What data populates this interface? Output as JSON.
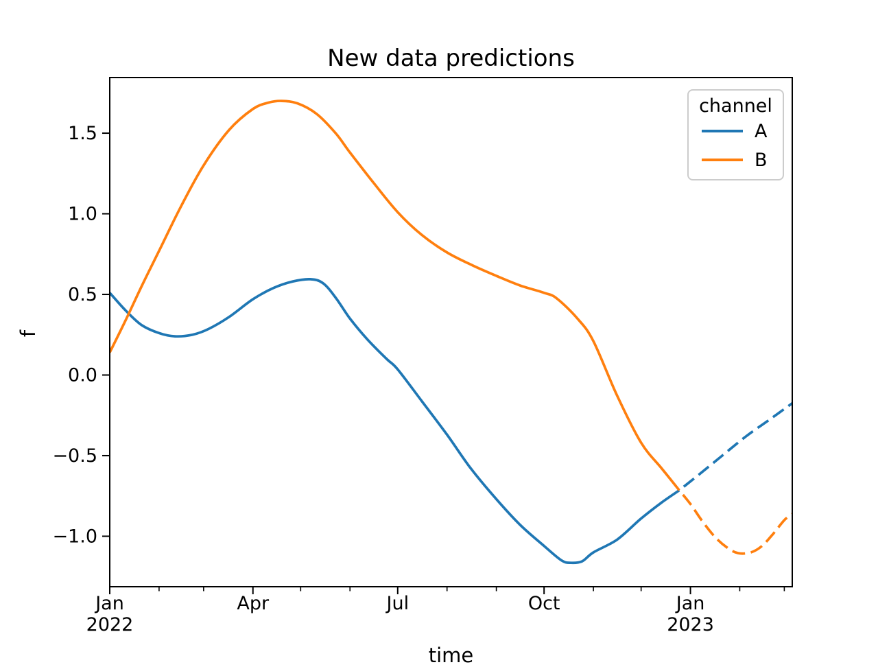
{
  "title": "New data predictions",
  "xlabel": "time",
  "ylabel": "f",
  "legend": {
    "title": "channel",
    "entries": [
      {
        "label": "A",
        "color": "#1f77b4"
      },
      {
        "label": "B",
        "color": "#ff7f0e"
      }
    ]
  },
  "colors": {
    "channel_a": "#1f77b4",
    "channel_b": "#ff7f0e",
    "axis": "#000000",
    "legend_border": "#cccccc"
  },
  "chart_data": {
    "type": "line",
    "title": "New data predictions",
    "xlabel": "time",
    "ylabel": "f",
    "legend_title": "channel",
    "legend_position": "upper right",
    "grid": false,
    "x_unit": "days since 2022-01-01",
    "xlim": [
      0,
      429
    ],
    "ylim": [
      -1.313,
      1.845
    ],
    "x_major_ticks": [
      {
        "day": 0,
        "line1": "Jan",
        "line2": "2022"
      },
      {
        "day": 90,
        "line1": "Apr",
        "line2": ""
      },
      {
        "day": 181,
        "line1": "Jul",
        "line2": ""
      },
      {
        "day": 273,
        "line1": "Oct",
        "line2": ""
      },
      {
        "day": 365,
        "line1": "Jan",
        "line2": "2023"
      }
    ],
    "x_minor_tick_days": [
      31,
      59,
      120,
      151,
      212,
      243,
      304,
      334,
      396,
      424
    ],
    "y_ticks": [
      {
        "value": 1.5,
        "label": "1.5"
      },
      {
        "value": 1.0,
        "label": "1.0"
      },
      {
        "value": 0.5,
        "label": "0.5"
      },
      {
        "value": 0.0,
        "label": "0.0"
      },
      {
        "value": -0.5,
        "label": "−0.5"
      },
      {
        "value": -1.0,
        "label": "−1.0"
      }
    ],
    "series": [
      {
        "name": "A",
        "role": "observed",
        "color": "#1f77b4",
        "linestyle": "solid",
        "points": [
          [
            0,
            0.51
          ],
          [
            10,
            0.4
          ],
          [
            20,
            0.31
          ],
          [
            31,
            0.26
          ],
          [
            41,
            0.24
          ],
          [
            52,
            0.25
          ],
          [
            62,
            0.285
          ],
          [
            75,
            0.36
          ],
          [
            90,
            0.47
          ],
          [
            103,
            0.54
          ],
          [
            115,
            0.58
          ],
          [
            126,
            0.594
          ],
          [
            134,
            0.57
          ],
          [
            142,
            0.48
          ],
          [
            151,
            0.35
          ],
          [
            162,
            0.22
          ],
          [
            174,
            0.1
          ],
          [
            181,
            0.035
          ],
          [
            196,
            -0.16
          ],
          [
            212,
            -0.37
          ],
          [
            227,
            -0.58
          ],
          [
            243,
            -0.77
          ],
          [
            258,
            -0.93
          ],
          [
            273,
            -1.06
          ],
          [
            284,
            -1.15
          ],
          [
            290,
            -1.165
          ],
          [
            297,
            -1.155
          ],
          [
            304,
            -1.1
          ],
          [
            319,
            -1.02
          ],
          [
            334,
            -0.89
          ],
          [
            347,
            -0.79
          ],
          [
            358,
            -0.715
          ]
        ]
      },
      {
        "name": "A",
        "role": "predicted",
        "color": "#1f77b4",
        "linestyle": "dashed",
        "points": [
          [
            358,
            -0.715
          ],
          [
            370,
            -0.62
          ],
          [
            385,
            -0.5
          ],
          [
            400,
            -0.38
          ],
          [
            415,
            -0.275
          ],
          [
            429,
            -0.175
          ]
        ]
      },
      {
        "name": "B",
        "role": "observed",
        "color": "#ff7f0e",
        "linestyle": "solid",
        "points": [
          [
            0,
            0.14
          ],
          [
            10,
            0.34
          ],
          [
            20,
            0.55
          ],
          [
            31,
            0.77
          ],
          [
            45,
            1.05
          ],
          [
            59,
            1.3
          ],
          [
            75,
            1.52
          ],
          [
            90,
            1.65
          ],
          [
            100,
            1.69
          ],
          [
            108,
            1.7
          ],
          [
            118,
            1.685
          ],
          [
            130,
            1.62
          ],
          [
            142,
            1.5
          ],
          [
            151,
            1.38
          ],
          [
            166,
            1.19
          ],
          [
            181,
            1.01
          ],
          [
            196,
            0.87
          ],
          [
            212,
            0.76
          ],
          [
            228,
            0.68
          ],
          [
            243,
            0.615
          ],
          [
            258,
            0.555
          ],
          [
            273,
            0.51
          ],
          [
            281,
            0.475
          ],
          [
            294,
            0.35
          ],
          [
            304,
            0.21
          ],
          [
            319,
            -0.13
          ],
          [
            334,
            -0.42
          ],
          [
            347,
            -0.58
          ],
          [
            358,
            -0.715
          ]
        ]
      },
      {
        "name": "B",
        "role": "predicted",
        "color": "#ff7f0e",
        "linestyle": "dashed",
        "points": [
          [
            358,
            -0.715
          ],
          [
            365,
            -0.8
          ],
          [
            372,
            -0.9
          ],
          [
            380,
            -1.0
          ],
          [
            388,
            -1.07
          ],
          [
            395,
            -1.105
          ],
          [
            403,
            -1.1
          ],
          [
            410,
            -1.06
          ],
          [
            417,
            -0.985
          ],
          [
            424,
            -0.9
          ],
          [
            429,
            -0.862
          ]
        ]
      }
    ]
  }
}
